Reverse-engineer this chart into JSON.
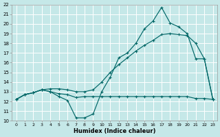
{
  "xlabel": "Humidex (Indice chaleur)",
  "xlim": [
    -0.5,
    23.5
  ],
  "ylim": [
    10,
    22
  ],
  "xticks": [
    0,
    1,
    2,
    3,
    4,
    5,
    6,
    7,
    8,
    9,
    10,
    11,
    12,
    13,
    14,
    15,
    16,
    17,
    18,
    19,
    20,
    21,
    22,
    23
  ],
  "yticks": [
    10,
    11,
    12,
    13,
    14,
    15,
    16,
    17,
    18,
    19,
    20,
    21,
    22
  ],
  "bg_color": "#c5e8e8",
  "grid_color": "#b0d0d0",
  "line_color": "#006666",
  "line1_x": [
    0,
    1,
    2,
    3,
    4,
    5,
    6,
    7,
    8,
    9,
    10,
    11,
    12,
    13,
    14,
    15,
    16,
    17,
    18,
    19,
    20,
    21,
    22,
    23
  ],
  "line1_y": [
    12.2,
    12.7,
    12.9,
    13.2,
    13.0,
    12.8,
    12.7,
    12.4,
    12.5,
    12.5,
    12.5,
    12.5,
    12.5,
    12.5,
    12.5,
    12.5,
    12.5,
    12.5,
    12.5,
    12.5,
    12.5,
    12.3,
    12.3,
    12.2
  ],
  "line2_x": [
    0,
    1,
    2,
    3,
    4,
    5,
    6,
    7,
    8,
    9,
    10,
    11,
    12,
    13,
    14,
    15,
    16,
    17,
    18,
    19,
    20,
    21,
    22,
    23
  ],
  "line2_y": [
    12.2,
    12.7,
    12.9,
    13.2,
    13.0,
    12.5,
    12.1,
    10.3,
    10.3,
    10.7,
    13.0,
    14.5,
    16.5,
    17.0,
    18.0,
    19.5,
    20.3,
    21.7,
    20.1,
    19.7,
    19.0,
    16.4,
    16.4,
    12.2
  ],
  "line3_x": [
    0,
    1,
    2,
    3,
    4,
    5,
    6,
    7,
    8,
    9,
    10,
    11,
    12,
    13,
    14,
    15,
    16,
    17,
    18,
    19,
    20,
    21,
    22,
    23
  ],
  "line3_y": [
    12.2,
    12.7,
    12.9,
    13.2,
    13.3,
    13.3,
    13.2,
    13.0,
    13.0,
    13.2,
    14.0,
    15.0,
    15.8,
    16.5,
    17.2,
    17.8,
    18.3,
    18.9,
    19.0,
    18.9,
    18.8,
    18.0,
    16.4,
    12.2
  ]
}
